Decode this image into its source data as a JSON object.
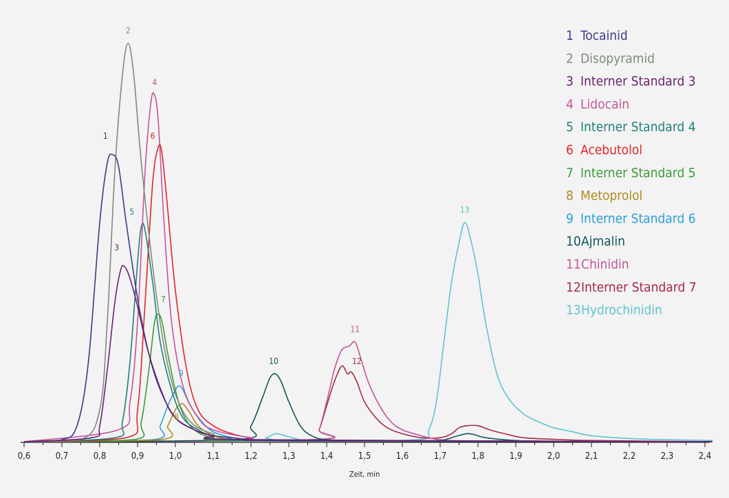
{
  "chart_data": {
    "type": "line",
    "title": "",
    "xlabel": "Zeit, min",
    "ylabel": "",
    "xlim": [
      0.6,
      2.42
    ],
    "ylim": [
      0,
      100
    ],
    "grid": false,
    "legend_position": "top-right",
    "x_ticks": [
      "0,6",
      "0,7",
      "0,8",
      "0,9",
      "1,0",
      "1,1",
      "1,2",
      "1,3",
      "1,4",
      "1,5",
      "1,6",
      "1,7",
      "1,8",
      "1,9",
      "2,0",
      "2,1",
      "2,2",
      "2,3",
      "2,4"
    ],
    "series": [
      {
        "id": "1",
        "name": "Tocainid",
        "color": "#3b3a86",
        "x": [
          0.6,
          0.7,
          0.74,
          0.77,
          0.8,
          0.82,
          0.835,
          0.85,
          0.87,
          0.9,
          0.93,
          0.96,
          1.0,
          1.05,
          1.1,
          1.15,
          1.2,
          1.3,
          2.42
        ],
        "y": [
          0,
          0.5,
          4,
          20,
          55,
          70,
          72,
          69,
          55,
          36,
          22,
          13,
          6,
          3,
          1.5,
          1,
          0.5,
          0.2,
          0
        ]
      },
      {
        "id": "2",
        "name": "Disopyramid",
        "color": "#7d8a7d",
        "x": [
          0.6,
          0.75,
          0.8,
          0.82,
          0.84,
          0.86,
          0.875,
          0.89,
          0.91,
          0.94,
          0.97,
          1.0,
          1.04,
          1.1,
          1.2,
          2.42
        ],
        "y": [
          0,
          0.5,
          8,
          30,
          68,
          92,
          100,
          92,
          70,
          44,
          24,
          12,
          5,
          2,
          0.5,
          0
        ]
      },
      {
        "id": "3",
        "name": "Interner Standard 3",
        "color": "#6a1f6e",
        "x": [
          0.6,
          0.78,
          0.8,
          0.82,
          0.84,
          0.855,
          0.865,
          0.88,
          0.9,
          0.93,
          0.97,
          1.0,
          1.05,
          1.1,
          1.2,
          2.42
        ],
        "y": [
          0,
          1,
          4,
          18,
          35,
          43,
          44,
          41,
          34,
          22,
          11,
          6,
          3,
          1.5,
          0.5,
          0
        ]
      },
      {
        "id": "4",
        "name": "Lidocain",
        "color": "#c0559a",
        "x": [
          0.6,
          0.85,
          0.88,
          0.9,
          0.92,
          0.935,
          0.945,
          0.955,
          0.97,
          0.99,
          1.02,
          1.06,
          1.1,
          1.2,
          1.3,
          2.42
        ],
        "y": [
          0,
          3,
          10,
          30,
          68,
          85,
          87,
          80,
          55,
          30,
          14,
          6,
          3,
          1,
          0.3,
          0
        ]
      },
      {
        "id": "5",
        "name": "Interner Standard 4",
        "color": "#1f7f7a",
        "x": [
          0.6,
          0.84,
          0.86,
          0.88,
          0.9,
          0.91,
          0.92,
          0.94,
          0.96,
          0.99,
          1.02,
          1.06,
          1.1,
          1.2,
          2.42
        ],
        "y": [
          0,
          1,
          5,
          20,
          45,
          54,
          53,
          40,
          25,
          13,
          6,
          3,
          1.5,
          0.3,
          0
        ]
      },
      {
        "id": "6",
        "name": "Acebutolol",
        "color": "#e3232a",
        "x": [
          0.6,
          0.87,
          0.9,
          0.92,
          0.94,
          0.955,
          0.965,
          0.98,
          1.0,
          1.03,
          1.06,
          1.1,
          1.15,
          1.2,
          1.3,
          2.42
        ],
        "y": [
          0,
          1,
          8,
          35,
          65,
          74,
          72,
          58,
          38,
          18,
          8,
          4,
          2,
          1,
          0.3,
          0
        ]
      },
      {
        "id": "7",
        "name": "Interner Standard 5",
        "color": "#3a9a3a",
        "x": [
          0.6,
          0.89,
          0.91,
          0.93,
          0.945,
          0.955,
          0.965,
          0.98,
          1.0,
          1.02,
          1.05,
          1.1,
          1.2,
          2.42
        ],
        "y": [
          0,
          0.5,
          5,
          18,
          30,
          32,
          30,
          22,
          13,
          7,
          3,
          1,
          0.2,
          0
        ]
      },
      {
        "id": "8",
        "name": "Metoprolol",
        "color": "#b08a1e",
        "x": [
          0.6,
          0.96,
          0.98,
          1.0,
          1.015,
          1.025,
          1.04,
          1.06,
          1.1,
          1.15,
          1.2,
          2.42
        ],
        "y": [
          0,
          0.5,
          4,
          8,
          9.5,
          9,
          7,
          4,
          1.5,
          0.5,
          0.2,
          0
        ]
      },
      {
        "id": "9",
        "name": "Interner Standard 6",
        "color": "#2aa0d6",
        "x": [
          0.6,
          0.94,
          0.96,
          0.98,
          1.0,
          1.01,
          1.02,
          1.04,
          1.07,
          1.1,
          1.15,
          1.2,
          2.42
        ],
        "y": [
          0,
          0.5,
          4,
          9,
          13,
          14,
          13,
          9,
          5,
          2.5,
          1,
          0.3,
          0
        ]
      },
      {
        "id": "10",
        "name": "Ajmalin",
        "color": "#13545a",
        "x": [
          0.6,
          1.16,
          1.2,
          1.23,
          1.25,
          1.265,
          1.28,
          1.3,
          1.33,
          1.36,
          1.4,
          1.5,
          1.6,
          1.7,
          1.74,
          1.77,
          1.79,
          1.82,
          1.9,
          2.0,
          2.42
        ],
        "y": [
          0,
          0.5,
          4,
          11,
          16,
          17,
          15,
          10,
          4,
          1.5,
          0.5,
          0.2,
          0.1,
          0.3,
          1.3,
          2,
          1.8,
          1,
          0.3,
          0.1,
          0
        ]
      },
      {
        "id": "11",
        "name": "Chinidin",
        "color": "#c0559a",
        "x": [
          0.6,
          1.36,
          1.38,
          1.4,
          1.42,
          1.44,
          1.46,
          1.475,
          1.49,
          1.51,
          1.54,
          1.57,
          1.6,
          1.65,
          1.7,
          1.8,
          2.42
        ],
        "y": [
          0,
          0.5,
          3,
          10,
          18,
          23,
          24,
          25,
          21,
          15,
          9,
          5,
          3,
          1.5,
          0.5,
          0.2,
          0
        ]
      },
      {
        "id": "12",
        "name": "Interner Standard 7",
        "color": "#a52a45",
        "x": [
          0.6,
          1.36,
          1.38,
          1.4,
          1.42,
          1.44,
          1.455,
          1.465,
          1.48,
          1.5,
          1.53,
          1.56,
          1.6,
          1.65,
          1.7,
          1.73,
          1.75,
          1.77,
          1.8,
          1.83,
          1.87,
          1.92,
          2.0,
          2.1,
          2.2,
          2.3,
          2.42
        ],
        "y": [
          0,
          0.5,
          3,
          9,
          15,
          19,
          17,
          17.5,
          15,
          10,
          6,
          3.5,
          2,
          1,
          1,
          2,
          3.5,
          4,
          4,
          3,
          2,
          1,
          0.6,
          0.3,
          0.2,
          0.1,
          0
        ]
      },
      {
        "id": "13",
        "name": "Hydrochinidin",
        "color": "#5ec3cf",
        "x": [
          0.6,
          1.2,
          1.24,
          1.265,
          1.29,
          1.33,
          1.36,
          1.64,
          1.67,
          1.69,
          1.71,
          1.73,
          1.75,
          1.765,
          1.78,
          1.8,
          1.82,
          1.85,
          1.88,
          1.92,
          1.96,
          2.0,
          2.05,
          2.1,
          2.2,
          2.3,
          2.42
        ],
        "y": [
          0,
          0.2,
          1,
          2,
          1.5,
          0.5,
          0.2,
          0.5,
          3,
          10,
          25,
          40,
          50,
          55,
          51,
          42,
          30,
          17,
          11,
          7,
          5,
          3.5,
          2.5,
          1.5,
          0.8,
          0.5,
          0.3
        ]
      }
    ],
    "peak_labels": [
      {
        "text": "1",
        "x": 0.815,
        "y": 76,
        "color": "#3b3a86"
      },
      {
        "text": "2",
        "x": 0.875,
        "y": 102.5,
        "color": "#7d8a7d"
      },
      {
        "text": "3",
        "x": 0.845,
        "y": 48,
        "color": "#6a1f6e"
      },
      {
        "text": "4",
        "x": 0.945,
        "y": 89.5,
        "color": "#c0559a"
      },
      {
        "text": "5",
        "x": 0.885,
        "y": 57,
        "color": "#1f7f7a"
      },
      {
        "text": "6",
        "x": 0.94,
        "y": 76,
        "color": "#e3232a"
      },
      {
        "text": "7",
        "x": 0.968,
        "y": 35,
        "color": "#3a9a3a"
      },
      {
        "text": "8",
        "x": 1.003,
        "y": 5.5,
        "color": "#b08a1e"
      },
      {
        "text": "9",
        "x": 1.015,
        "y": 16.5,
        "color": "#2aa0d6"
      },
      {
        "text": "10",
        "x": 1.26,
        "y": 19.5,
        "color": "#13545a"
      },
      {
        "text": "11",
        "x": 1.475,
        "y": 27.5,
        "color": "#c0559a"
      },
      {
        "text": "12",
        "x": 1.48,
        "y": 19.5,
        "color": "#a52a45"
      },
      {
        "text": "13",
        "x": 1.765,
        "y": 57.5,
        "color": "#5ec3cf"
      }
    ]
  }
}
